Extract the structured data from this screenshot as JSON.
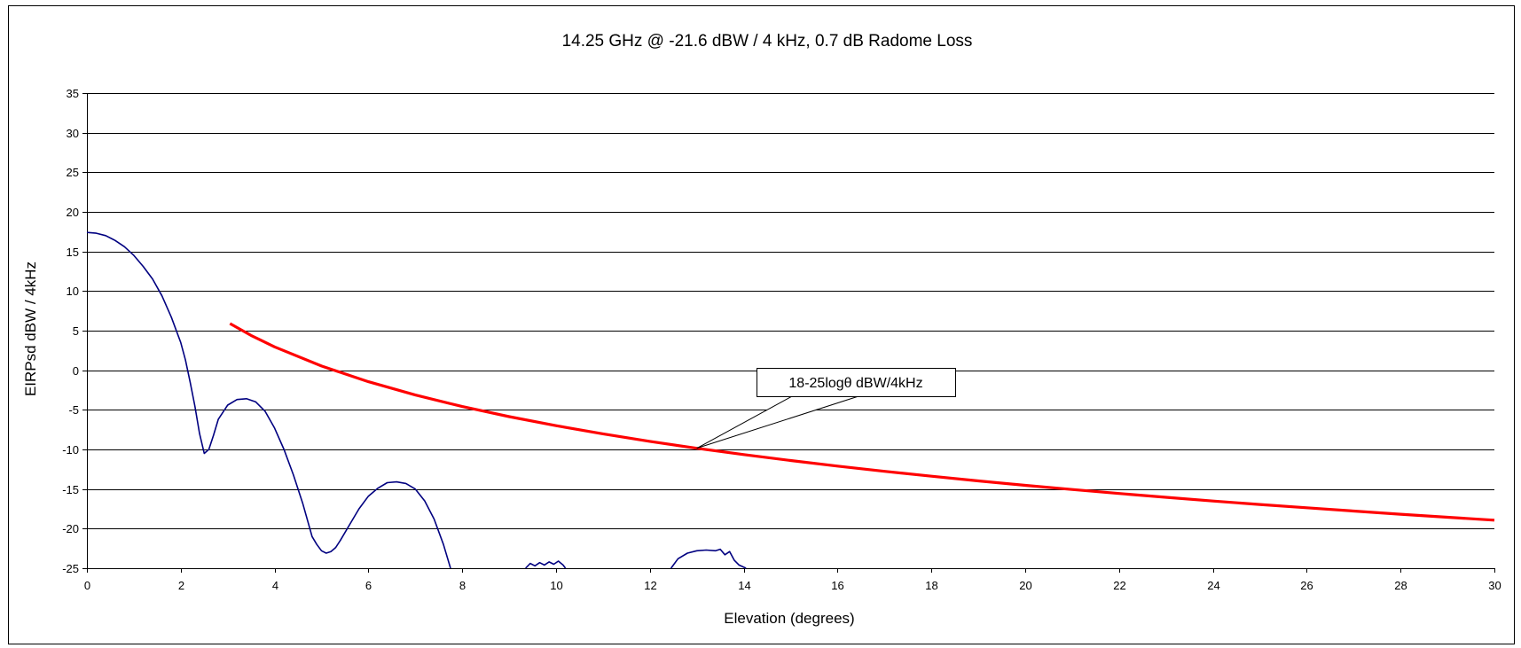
{
  "chart_data": {
    "type": "line",
    "title": "14.25 GHz @ -21.6 dBW / 4 kHz, 0.7 dB Radome Loss",
    "xlabel": "Elevation (degrees)",
    "ylabel": "EIRPsd dBW / 4kHz",
    "xlim": [
      0,
      30
    ],
    "ylim": [
      -25,
      35
    ],
    "x_ticks": [
      "0",
      "2",
      "4",
      "6",
      "8",
      "10",
      "12",
      "14",
      "16",
      "18",
      "20",
      "22",
      "24",
      "26",
      "28",
      "30"
    ],
    "y_ticks": [
      "35",
      "30",
      "25",
      "20",
      "15",
      "10",
      "5",
      "0",
      "-5",
      "-10",
      "-15",
      "-20",
      "-25"
    ],
    "grid": true,
    "legend": "none",
    "series": [
      {
        "color": "#000080",
        "segments": [
          [
            [
              0,
              17.4
            ],
            [
              0.2,
              17.3
            ],
            [
              0.4,
              17.0
            ],
            [
              0.6,
              16.4
            ],
            [
              0.8,
              15.6
            ],
            [
              1.0,
              14.5
            ],
            [
              1.2,
              13.1
            ],
            [
              1.4,
              11.5
            ],
            [
              1.6,
              9.4
            ],
            [
              1.8,
              6.7
            ],
            [
              2.0,
              3.5
            ],
            [
              2.1,
              1.3
            ],
            [
              2.2,
              -1.5
            ],
            [
              2.3,
              -4.5
            ],
            [
              2.4,
              -8.0
            ],
            [
              2.5,
              -10.5
            ],
            [
              2.6,
              -10.0
            ],
            [
              2.7,
              -8.2
            ],
            [
              2.8,
              -6.2
            ],
            [
              3.0,
              -4.4
            ],
            [
              3.2,
              -3.7
            ],
            [
              3.4,
              -3.6
            ],
            [
              3.6,
              -4.0
            ],
            [
              3.8,
              -5.2
            ],
            [
              4.0,
              -7.3
            ],
            [
              4.2,
              -10.0
            ],
            [
              4.4,
              -13.2
            ],
            [
              4.6,
              -16.8
            ],
            [
              4.8,
              -21.0
            ],
            [
              4.9,
              -22.0
            ],
            [
              5.0,
              -22.8
            ],
            [
              5.1,
              -23.1
            ],
            [
              5.2,
              -22.9
            ],
            [
              5.3,
              -22.4
            ],
            [
              5.4,
              -21.5
            ],
            [
              5.6,
              -19.5
            ],
            [
              5.8,
              -17.5
            ],
            [
              6.0,
              -15.9
            ],
            [
              6.2,
              -14.9
            ],
            [
              6.4,
              -14.2
            ],
            [
              6.6,
              -14.1
            ],
            [
              6.8,
              -14.3
            ],
            [
              7.0,
              -15.0
            ],
            [
              7.2,
              -16.5
            ],
            [
              7.4,
              -18.8
            ],
            [
              7.6,
              -22.0
            ],
            [
              7.75,
              -25.0
            ]
          ],
          [
            [
              9.35,
              -25.0
            ],
            [
              9.45,
              -24.4
            ],
            [
              9.55,
              -24.7
            ],
            [
              9.65,
              -24.3
            ],
            [
              9.75,
              -24.6
            ],
            [
              9.85,
              -24.2
            ],
            [
              9.95,
              -24.5
            ],
            [
              10.05,
              -24.1
            ],
            [
              10.15,
              -24.6
            ],
            [
              10.2,
              -25.0
            ]
          ],
          [
            [
              12.45,
              -25.0
            ],
            [
              12.6,
              -23.8
            ],
            [
              12.8,
              -23.1
            ],
            [
              13.0,
              -22.8
            ],
            [
              13.2,
              -22.7
            ],
            [
              13.4,
              -22.8
            ],
            [
              13.5,
              -22.6
            ],
            [
              13.6,
              -23.3
            ],
            [
              13.7,
              -22.9
            ],
            [
              13.8,
              -24.0
            ],
            [
              13.9,
              -24.6
            ],
            [
              14.05,
              -25.0
            ]
          ]
        ]
      },
      {
        "color": "#ff0000",
        "x": [
          3.05,
          3.5,
          4,
          5,
          6,
          7,
          8,
          9,
          10,
          11,
          12,
          13,
          14,
          15,
          16,
          17,
          18,
          19,
          20,
          21,
          22,
          23,
          24,
          25,
          26,
          27,
          28,
          29,
          30
        ],
        "values": [
          5.89,
          4.4,
          2.95,
          0.53,
          -1.45,
          -3.13,
          -4.58,
          -5.86,
          -7.0,
          -8.03,
          -8.98,
          -9.85,
          -10.65,
          -11.4,
          -12.1,
          -12.76,
          -13.38,
          -13.97,
          -14.53,
          -15.06,
          -15.56,
          -16.04,
          -16.51,
          -16.95,
          -17.37,
          -17.78,
          -18.18,
          -18.56,
          -18.93
        ]
      }
    ],
    "annotations": [
      {
        "text": "18-25logθ dBW/4kHz",
        "x": 13.0,
        "y": -9.85
      }
    ]
  }
}
